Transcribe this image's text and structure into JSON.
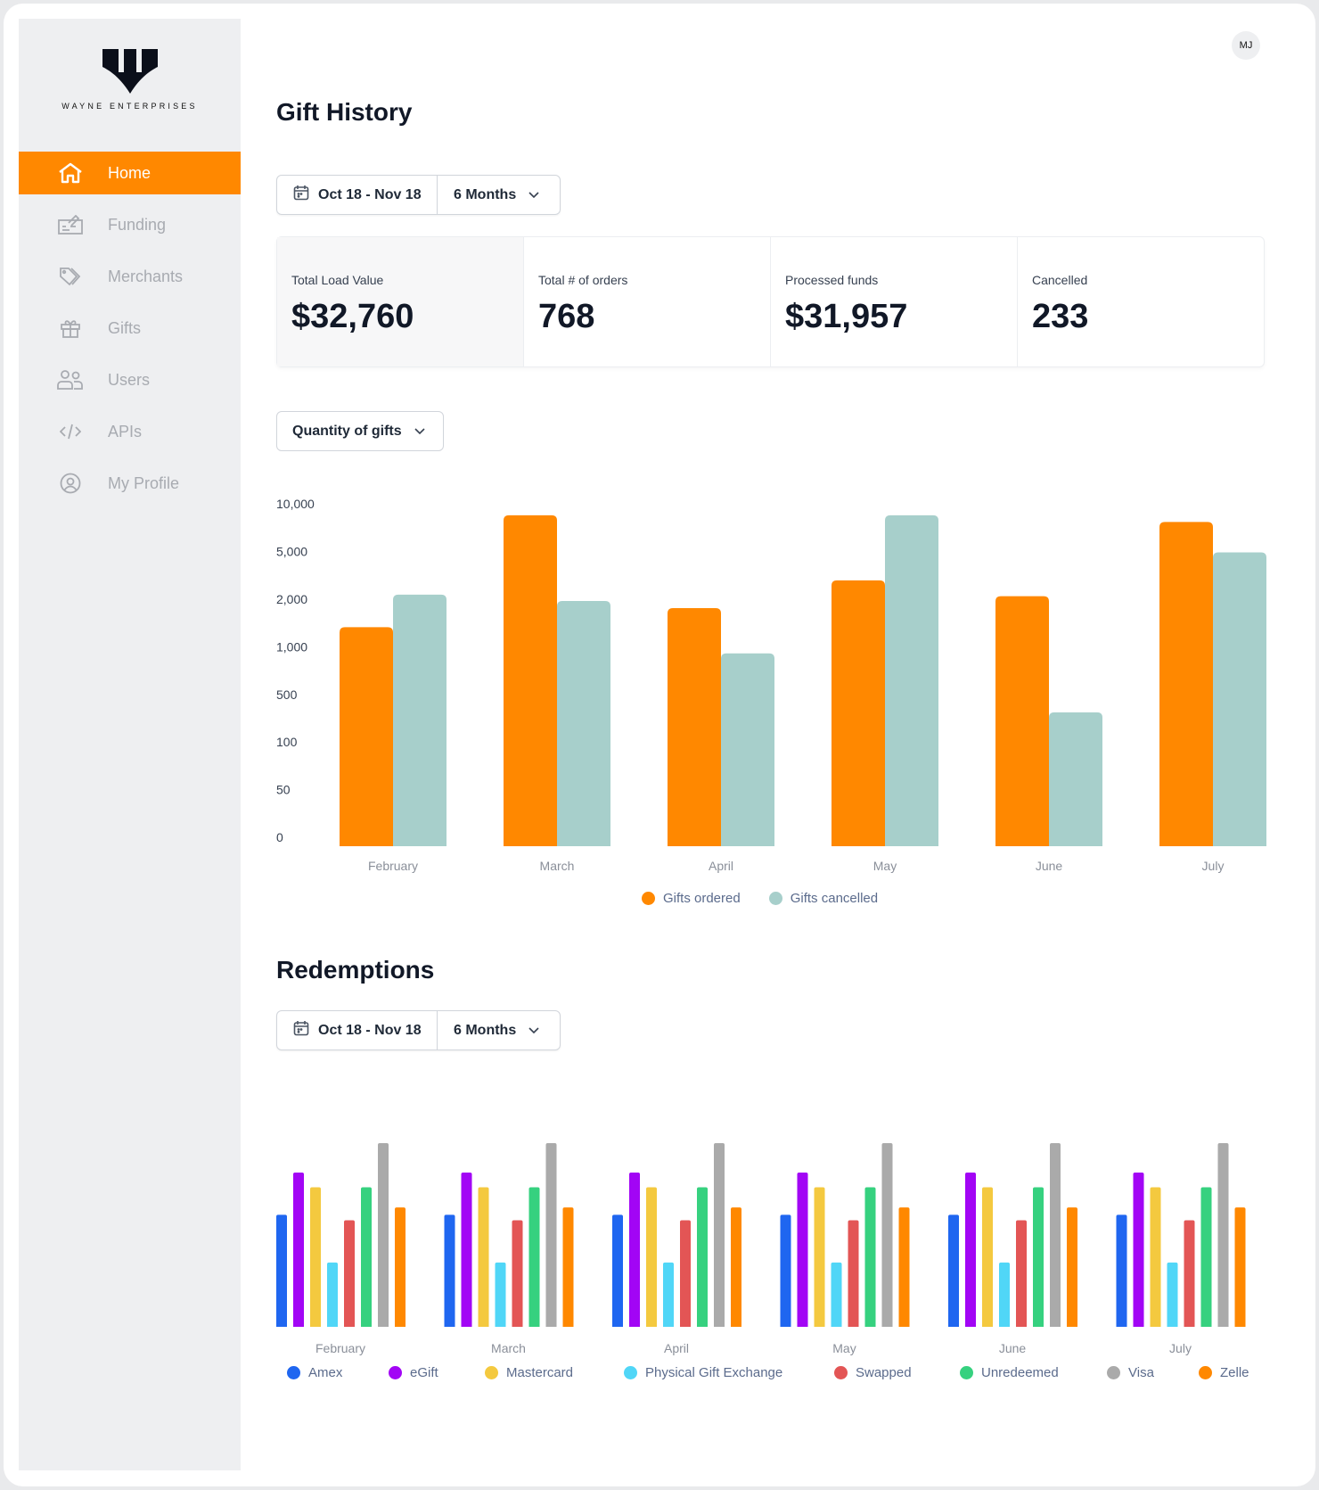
{
  "brand": {
    "name": "WAYNE ENTERPRISES"
  },
  "user": {
    "initials": "MJ"
  },
  "sidebar": {
    "items": [
      {
        "label": "Home",
        "icon": "home-icon",
        "active": true
      },
      {
        "label": "Funding",
        "icon": "check-icon"
      },
      {
        "label": "Merchants",
        "icon": "tag-icon"
      },
      {
        "label": "Gifts",
        "icon": "gift-icon"
      },
      {
        "label": "Users",
        "icon": "users-icon"
      },
      {
        "label": "APIs",
        "icon": "code-icon"
      },
      {
        "label": "My Profile",
        "icon": "user-circle-icon"
      }
    ]
  },
  "gift_history": {
    "title": "Gift History",
    "date_range": "Oct 18 - Nov 18",
    "period": "6 Months",
    "stats": [
      {
        "label": "Total Load Value",
        "value": "$32,760"
      },
      {
        "label": "Total # of orders",
        "value": "768"
      },
      {
        "label": "Processed funds",
        "value": "$31,957"
      },
      {
        "label": "Cancelled",
        "value": "233"
      }
    ],
    "metric_select": "Quantity of gifts"
  },
  "redemptions": {
    "title": "Redemptions",
    "date_range": "Oct 18 - Nov 18",
    "period": "6 Months"
  },
  "colors": {
    "accent": "#ff8800",
    "sidebar_bg": "#eeeff1"
  },
  "chart_data": [
    {
      "type": "bar",
      "categories": [
        "February",
        "March",
        "April",
        "May",
        "June",
        "July"
      ],
      "yticks": [
        "0",
        "50",
        "100",
        "500",
        "1,000",
        "2,000",
        "5,000",
        "10,000"
      ],
      "ytick_values": [
        0,
        50,
        100,
        500,
        1000,
        2000,
        5000,
        10000
      ],
      "ylim": [
        0,
        10000
      ],
      "grid": false,
      "legend": "bottom",
      "series": [
        {
          "name": "Gifts ordered",
          "color": "#ff8800",
          "values": [
            1600,
            9750,
            2000,
            3750,
            2750,
            9050
          ]
        },
        {
          "name": "Gifts cancelled",
          "color": "#a7cfcb",
          "values": [
            2850,
            2450,
            1050,
            9750,
            425,
            5850
          ]
        }
      ]
    },
    {
      "type": "bar",
      "categories": [
        "February",
        "March",
        "April",
        "May",
        "June",
        "July"
      ],
      "legend": "bottom",
      "grid": false,
      "series": [
        {
          "name": "Amex",
          "color": "#1f66f0",
          "values": [
            61,
            61,
            61,
            61,
            61,
            61
          ]
        },
        {
          "name": "eGift",
          "color": "#a205f5",
          "values": [
            84,
            84,
            84,
            84,
            84,
            84
          ]
        },
        {
          "name": "Mastercard",
          "color": "#f4c93f",
          "values": [
            76,
            76,
            76,
            76,
            76,
            76
          ]
        },
        {
          "name": "Physical Gift Exchange",
          "color": "#50d6f7",
          "values": [
            35,
            35,
            35,
            35,
            35,
            35
          ]
        },
        {
          "name": "Swapped",
          "color": "#e35555",
          "values": [
            58,
            58,
            58,
            58,
            58,
            58
          ]
        },
        {
          "name": "Unredeemed",
          "color": "#36d17f",
          "values": [
            76,
            76,
            76,
            76,
            76,
            76
          ]
        },
        {
          "name": "Visa",
          "color": "#aaaaaa",
          "values": [
            100,
            100,
            100,
            100,
            100,
            100
          ]
        },
        {
          "name": "Zelle",
          "color": "#ff8800",
          "values": [
            65,
            65,
            65,
            65,
            65,
            65
          ]
        }
      ]
    }
  ]
}
